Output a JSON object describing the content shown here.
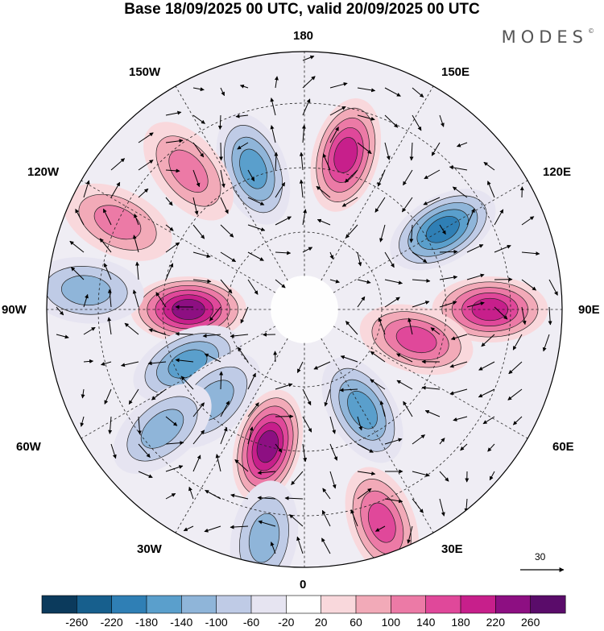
{
  "title": "Base 18/09/2025 00 UTC, valid 20/09/2025 00 UTC",
  "brand": "MODES",
  "brand_mark": "©",
  "longitude_labels": {
    "top": "180",
    "bottom": "0",
    "left": "90W",
    "right": "90E",
    "upper_left_150": "150W",
    "upper_left_120": "120W",
    "lower_left_60": "60W",
    "lower_left_30": "30W",
    "upper_right_150": "150E",
    "upper_right_120": "120E",
    "lower_right_60": "60E",
    "lower_right_30": "30E"
  },
  "reference_vector": {
    "label": "30",
    "icon": "arrow-right-icon"
  },
  "colorbar": {
    "labels": [
      "-260",
      "-220",
      "-180",
      "-140",
      "-100",
      "-60",
      "-20",
      "20",
      "60",
      "100",
      "140",
      "180",
      "220",
      "260"
    ],
    "colors": [
      "#0b3a5c",
      "#175f8d",
      "#2f7fb5",
      "#5a9fcc",
      "#8fb5d9",
      "#bfcbe6",
      "#e6e4f1",
      "#ffffff",
      "#f9d8dc",
      "#f2aab8",
      "#ec7aa6",
      "#e0489a",
      "#c71f8b",
      "#8d0f82",
      "#5a0c6a"
    ]
  },
  "map": {
    "projection": "north polar stereographic",
    "anomalies": [
      {
        "sign": "pos",
        "lon": 165,
        "dist": 0.62,
        "amp": 4
      },
      {
        "sign": "neg",
        "lon": -160,
        "dist": 0.58,
        "amp": 3
      },
      {
        "sign": "neg",
        "lon": 120,
        "dist": 0.62,
        "amp": 4
      },
      {
        "sign": "pos",
        "lon": 90,
        "dist": 0.72,
        "amp": 4
      },
      {
        "sign": "pos",
        "lon": 75,
        "dist": 0.45,
        "amp": 3
      },
      {
        "sign": "pos",
        "lon": -90,
        "dist": 0.45,
        "amp": 5
      },
      {
        "sign": "neg",
        "lon": -65,
        "dist": 0.5,
        "amp": 3
      },
      {
        "sign": "pos",
        "lon": -15,
        "dist": 0.55,
        "amp": 5
      },
      {
        "sign": "neg",
        "lon": 30,
        "dist": 0.45,
        "amp": 3
      },
      {
        "sign": "pos",
        "lon": 20,
        "dist": 0.88,
        "amp": 3
      },
      {
        "sign": "neg",
        "lon": -95,
        "dist": 0.85,
        "amp": 2
      },
      {
        "sign": "pos",
        "lon": -115,
        "dist": 0.8,
        "amp": 2
      },
      {
        "sign": "pos",
        "lon": -140,
        "dist": 0.7,
        "amp": 2
      },
      {
        "sign": "neg",
        "lon": -45,
        "dist": 0.5,
        "amp": 2
      },
      {
        "sign": "neg",
        "lon": -50,
        "dist": 0.72,
        "amp": 2
      },
      {
        "sign": "neg",
        "lon": -10,
        "dist": 0.9,
        "amp": 2
      }
    ]
  }
}
